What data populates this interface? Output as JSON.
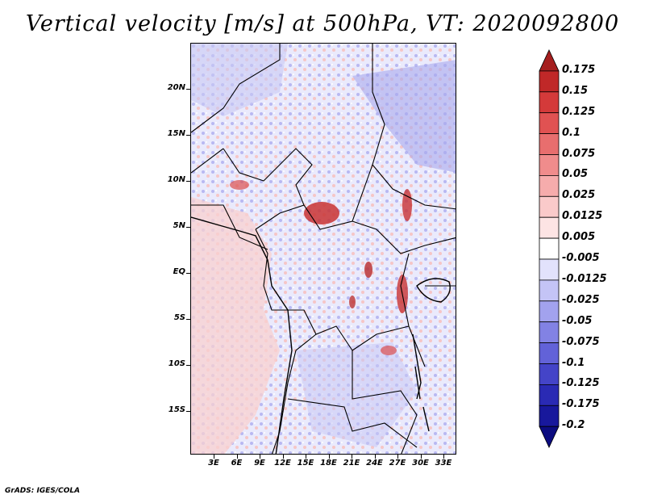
{
  "title": "Vertical velocity [m/s] at 500hPa, VT: 2020092800",
  "credit": "GrADS: IGES/COLA",
  "map": {
    "lat_ticks": [
      "20N",
      "15N",
      "10N",
      "5N",
      "EQ",
      "5S",
      "10S",
      "15S"
    ],
    "lon_ticks": [
      "3E",
      "6E",
      "9E",
      "12E",
      "15E",
      "18E",
      "21E",
      "24E",
      "27E",
      "30E",
      "33E"
    ]
  },
  "colorbar": {
    "labels": [
      "0.175",
      "0.15",
      "0.125",
      "0.1",
      "0.075",
      "0.05",
      "0.025",
      "0.0125",
      "0.005",
      "-0.005",
      "-0.0125",
      "-0.025",
      "-0.05",
      "-0.075",
      "-0.1",
      "-0.125",
      "-0.175",
      "-0.2"
    ],
    "colors": [
      "#a51e1e",
      "#c02828",
      "#d43a3a",
      "#e05252",
      "#e86e6e",
      "#f08c8c",
      "#f6acac",
      "#facaca",
      "#fde4e4",
      "#ffffff",
      "#e2e2fc",
      "#c4c4f6",
      "#a2a2ee",
      "#8282e4",
      "#6262d8",
      "#4444c8",
      "#2a2ab4",
      "#18189c",
      "#0c0c80"
    ]
  }
}
